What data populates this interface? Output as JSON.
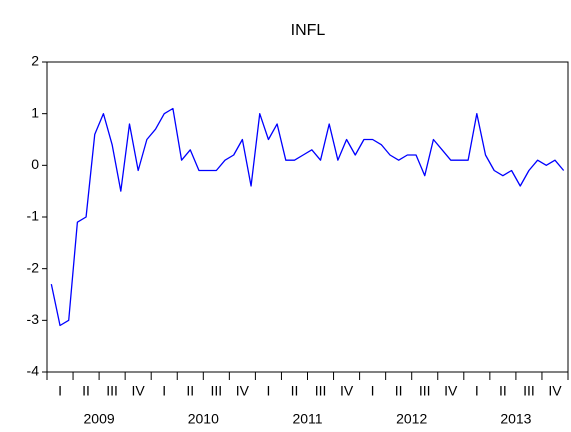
{
  "chart_data": {
    "type": "line",
    "title": "INFL",
    "values": [
      -2.3,
      -3.1,
      -3.0,
      -1.1,
      -1.0,
      0.6,
      1.0,
      0.4,
      -0.5,
      0.8,
      -0.1,
      0.5,
      0.7,
      1.0,
      1.1,
      0.1,
      0.3,
      -0.1,
      -0.1,
      -0.1,
      0.1,
      0.2,
      0.5,
      -0.4,
      1.0,
      0.5,
      0.8,
      0.1,
      0.1,
      0.2,
      0.3,
      0.1,
      0.8,
      0.1,
      0.5,
      0.2,
      0.5,
      0.5,
      0.4,
      0.2,
      0.1,
      0.2,
      0.2,
      -0.2,
      0.5,
      0.3,
      0.1,
      0.1,
      0.1,
      1.0,
      0.2,
      -0.1,
      -0.2,
      -0.1,
      -0.4,
      -0.1,
      0.1,
      0.0,
      0.1,
      -0.1
    ],
    "quarter_labels": [
      "I",
      "II",
      "III",
      "IV",
      "I",
      "II",
      "III",
      "IV",
      "I",
      "II",
      "III",
      "IV",
      "I",
      "II",
      "III",
      "IV",
      "I",
      "II",
      "III",
      "IV"
    ],
    "year_labels": [
      "2009",
      "2010",
      "2011",
      "2012",
      "2013"
    ],
    "color": "#0000ff",
    "ylim": [
      -4,
      2
    ],
    "yticks": [
      -4,
      -3,
      -2,
      -1,
      0,
      1,
      2
    ],
    "grid": false
  }
}
